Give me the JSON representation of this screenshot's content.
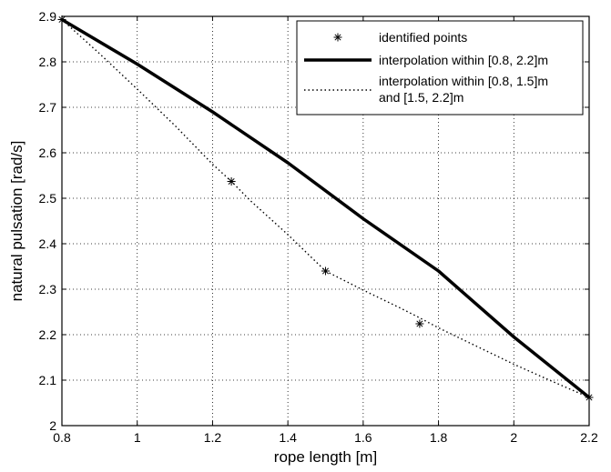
{
  "chart_data": {
    "type": "line",
    "xlabel": "rope length [m]",
    "ylabel": "natural pulsation [rad/s]",
    "xlim": [
      0.8,
      2.2
    ],
    "ylim": [
      2.0,
      2.9
    ],
    "xticks": [
      "0.8",
      "1",
      "1.2",
      "1.4",
      "1.6",
      "1.8",
      "2",
      "2.2"
    ],
    "yticks": [
      "2",
      "2.1",
      "2.2",
      "2.3",
      "2.4",
      "2.5",
      "2.6",
      "2.7",
      "2.8",
      "2.9"
    ],
    "grid": true,
    "legend_position": "top-right",
    "series": [
      {
        "name": "identified points",
        "style": "markers-asterisk",
        "color": "#000000",
        "x": [
          0.8,
          1.25,
          1.5,
          1.75,
          2.2
        ],
        "y": [
          2.893,
          2.537,
          2.34,
          2.224,
          2.062
        ]
      },
      {
        "name": "interpolation within [0.8, 2.2]m",
        "style": "solid",
        "color": "#000000",
        "x": [
          0.8,
          1.0,
          1.2,
          1.4,
          1.6,
          1.8,
          2.0,
          2.2
        ],
        "y": [
          2.893,
          2.795,
          2.69,
          2.578,
          2.455,
          2.34,
          2.195,
          2.062
        ]
      },
      {
        "name": "interpolation within [0.8, 1.5]m\nand [1.5, 2.2]m",
        "name_lines": [
          "interpolation within [0.8, 1.5]m",
          "and [1.5, 2.2]m"
        ],
        "style": "dotted",
        "color": "#000000",
        "x": [
          0.8,
          0.9,
          1.0,
          1.1,
          1.2,
          1.25,
          1.3,
          1.4,
          1.5,
          1.6,
          1.7,
          1.75,
          1.8,
          1.9,
          2.0,
          2.1,
          2.2
        ],
        "y": [
          2.893,
          2.818,
          2.74,
          2.66,
          2.575,
          2.537,
          2.495,
          2.42,
          2.34,
          2.298,
          2.258,
          2.237,
          2.215,
          2.175,
          2.135,
          2.098,
          2.062
        ]
      }
    ]
  }
}
